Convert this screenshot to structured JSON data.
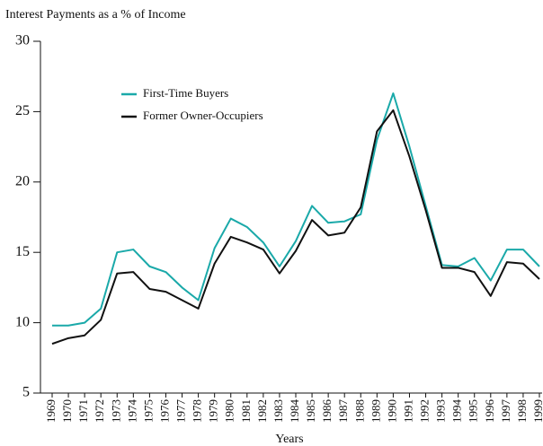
{
  "chart_data": {
    "type": "line",
    "title": "Interest Payments as a % of Income",
    "x_label": "Years",
    "categories": [
      "1969",
      "1970",
      "1971",
      "1972",
      "1973",
      "1974",
      "1975",
      "1976",
      "1977",
      "1978",
      "1979",
      "1980",
      "1981",
      "1982",
      "1983",
      "1984",
      "1985",
      "1986",
      "1987",
      "1988",
      "1989",
      "1990",
      "1991",
      "1992",
      "1993",
      "1994",
      "1995",
      "1996",
      "1997",
      "1998",
      "1999"
    ],
    "series": [
      {
        "name": "First-Time Buyers",
        "color": "#1aa9a9",
        "values": [
          9.8,
          9.8,
          10.0,
          11.0,
          15.0,
          15.2,
          14.0,
          13.6,
          12.5,
          11.6,
          15.3,
          17.4,
          16.8,
          15.7,
          14.0,
          15.8,
          18.3,
          17.1,
          17.2,
          17.7,
          23.0,
          26.3,
          22.5,
          18.3,
          14.1,
          14.0,
          14.6,
          13.0,
          15.2,
          15.2,
          14.0
        ]
      },
      {
        "name": "Former Owner-Occupiers",
        "color": "#111111",
        "values": [
          8.5,
          8.9,
          9.1,
          10.2,
          13.5,
          13.6,
          12.4,
          12.2,
          11.6,
          11.0,
          14.2,
          16.1,
          15.7,
          15.2,
          13.5,
          15.1,
          17.3,
          16.2,
          16.4,
          18.2,
          23.6,
          25.1,
          21.8,
          18.0,
          13.9,
          13.9,
          13.6,
          11.9,
          14.3,
          14.2,
          13.1
        ]
      }
    ],
    "ylim": [
      5,
      30
    ],
    "yticks": [
      5,
      10,
      15,
      20,
      25,
      30
    ],
    "legend": "upper left",
    "grid": false
  }
}
